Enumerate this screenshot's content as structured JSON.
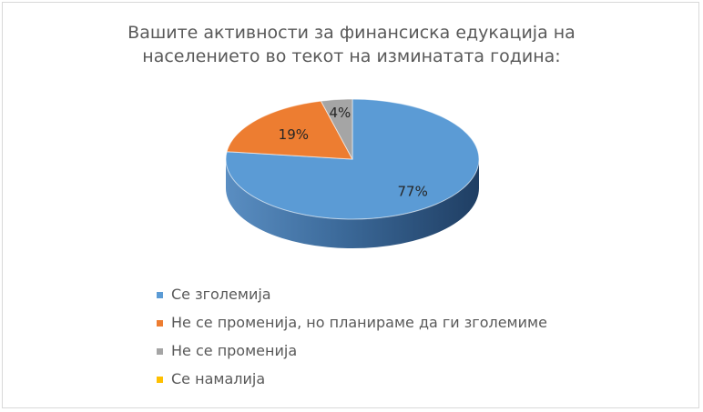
{
  "chart_data": {
    "type": "pie",
    "title_lines": [
      "Вашите активности за финансиска едукација на",
      "населението во текот на изминатата година:"
    ],
    "categories": [
      "Се зголемија",
      "Не се променија, но планираме да ги зголемиме",
      "Не се променија",
      "Се намалија"
    ],
    "values": [
      77,
      19,
      4,
      0
    ],
    "data_labels": [
      "77%",
      "19%",
      "4%",
      ""
    ],
    "colors": [
      "#5b9bd5",
      "#ed7d31",
      "#a5a5a5",
      "#ffc000"
    ],
    "legend_position": "bottom-left",
    "style": "3d"
  }
}
